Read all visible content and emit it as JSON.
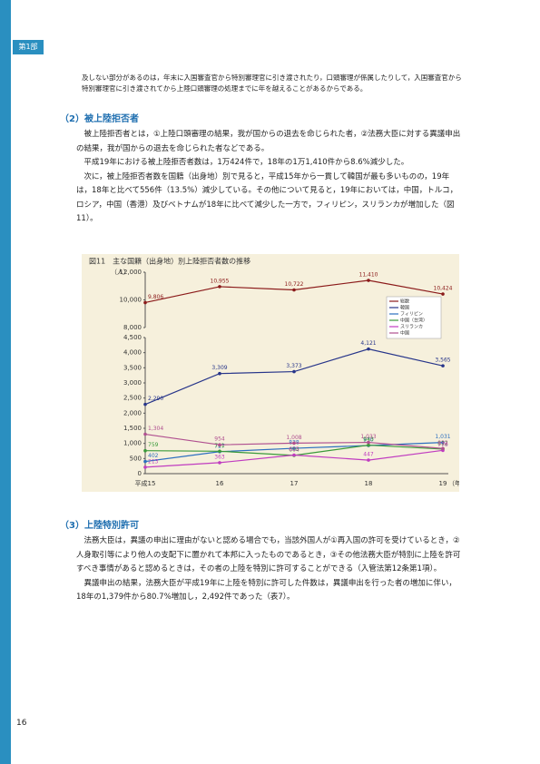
{
  "header": {
    "part": "第1部"
  },
  "intro": "及しない部分があるのは，年末に入国審査官から特別審理官に引き渡されたり，口頭審理が係属したりして，入国審査官から特別審理官に引き渡されてから上陸口頭審理の処理までに年を越えることがあるからである。",
  "sections": [
    {
      "heading": "（2）被上陸拒否者",
      "paragraphs": [
        "被上陸拒否者とは，①上陸口頭審理の結果，我が国からの退去を命じられた者，②法務大臣に対する異議申出の結果，我が国からの退去を命じられた者などである。",
        "平成19年における被上陸拒否者数は，1万424件で，18年の1万1,410件から8.6%減少した。",
        "次に，被上陸拒否者数を国籍（出身地）別で見ると，平成15年から一貫して韓国が最も多いものの，19年は，18年と比べて556件（13.5%）減少している。その他について見ると，19年においては，中国，トルコ，ロシア，中国（香港）及びベトナムが18年に比べて減少した一方で，フィリピン，スリランカが増加した（図11）。"
      ]
    },
    {
      "heading": "（3）上陸特別許可",
      "paragraphs": [
        "法務大臣は，異議の申出に理由がないと認める場合でも，当該外国人が①再入国の許可を受けているとき，②人身取引等により他人の支配下に置かれて本邦に入ったものであるとき，③その他法務大臣が特別に上陸を許可すべき事情があると認めるときは，その者の上陸を特別に許可することができる（入管法第12条第1項）。",
        "異議申出の結果，法務大臣が平成19年に上陸を特別に許可した件数は，異議申出を行った者の増加に伴い，18年の1,379件から80.7%増加し，2,492件であった（表7）。"
      ]
    }
  ],
  "page_number": "16",
  "chart_data": {
    "type": "line",
    "title": "図11　主な国籍（出身地）別上陸拒否者数の推移",
    "y_label": "（人）",
    "x_label": "（年）",
    "categories": [
      "平成15",
      "16",
      "17",
      "18",
      "19"
    ],
    "ylim": [
      0,
      4500
    ],
    "yticks": [
      0,
      500,
      {
        "value": 1000,
        "label": "1,000"
      },
      {
        "value": 1500,
        "label": "1,500"
      },
      {
        "value": 2000,
        "label": "2,000"
      },
      {
        "value": 2500,
        "label": "2,500"
      },
      {
        "value": 3000,
        "label": "3,000"
      },
      {
        "value": 3500,
        "label": "3,500"
      },
      {
        "value": 4000,
        "label": "4,000"
      },
      {
        "value": 4500,
        "label": "4,500"
      }
    ],
    "y2lim": [
      8000,
      12000
    ],
    "y2ticks": [
      {
        "value": 8000,
        "label": "8,000"
      },
      {
        "value": 10000,
        "label": "10,000"
      },
      {
        "value": 12000,
        "label": "12,000"
      }
    ],
    "legend": "right",
    "series": [
      {
        "name": "総数",
        "color": "#8b1a1a",
        "axis": "y2",
        "values": [
          9806,
          10955,
          10722,
          11410,
          10424
        ],
        "value_labels": [
          "9,806",
          "10,955",
          "10,722",
          "11,410",
          "10,424"
        ]
      },
      {
        "name": "韓国",
        "color": "#27358a",
        "values": [
          2290,
          3309,
          3373,
          4121,
          3565
        ],
        "value_labels": [
          "2,290",
          "3,309",
          "3,373",
          "4,121",
          "3,565"
        ]
      },
      {
        "name": "フィリピン",
        "color": "#2c6fbf",
        "values": [
          402,
          727,
          838,
          930,
          1031
        ],
        "value_labels": [
          "402",
          "727",
          "838",
          "930",
          "1,031"
        ]
      },
      {
        "name": "中国（台湾）",
        "color": "#3a9a3a",
        "values": [
          759,
          741,
          604,
          943,
          812
        ],
        "value_labels": [
          "759",
          "741",
          "604",
          "943",
          "812"
        ]
      },
      {
        "name": "スリランカ",
        "color": "#c03cc0",
        "values": [
          213,
          363,
          615,
          447,
          770
        ],
        "value_labels": [
          "213",
          "363",
          "615",
          "447",
          "770"
        ]
      },
      {
        "name": "中国",
        "color": "#b05090",
        "values": [
          1304,
          954,
          1008,
          1033,
          832
        ],
        "value_labels": [
          "1,304",
          "954",
          "1,008",
          "1,033",
          "832"
        ]
      }
    ]
  }
}
